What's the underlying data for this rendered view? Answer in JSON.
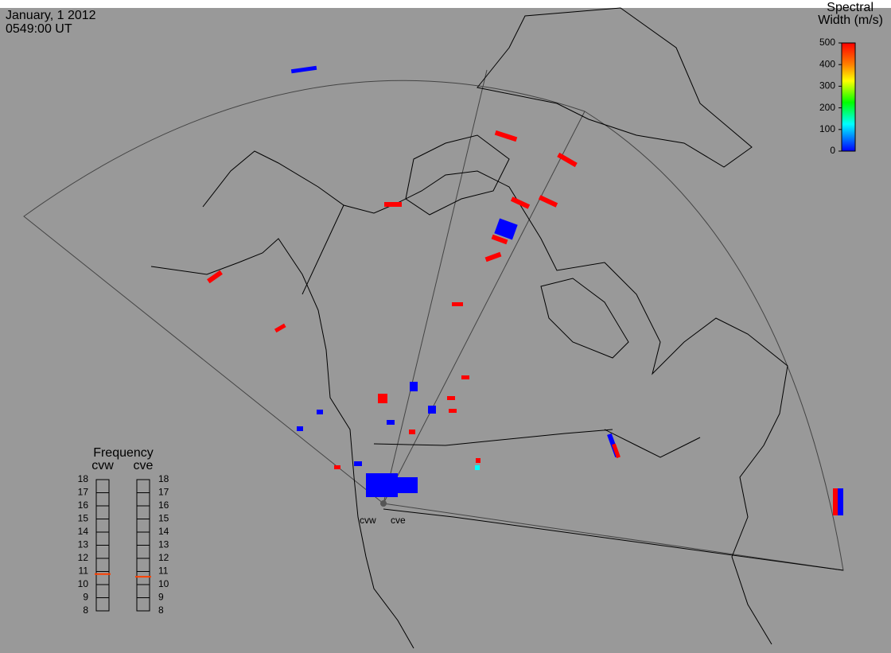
{
  "header": {
    "date": "January, 1 2012",
    "time": "0549:00 UT"
  },
  "colorbar": {
    "title_line1": "Spectral",
    "title_line2": "Width (m/s)",
    "range": [
      0,
      500
    ],
    "ticks": [
      0,
      100,
      200,
      300,
      400,
      500
    ]
  },
  "frequency": {
    "title": "Frequency",
    "range": [
      8,
      18
    ],
    "ticks": [
      8,
      9,
      10,
      11,
      12,
      13,
      14,
      15,
      16,
      17,
      18
    ],
    "radars": [
      {
        "name": "cvw",
        "value": 10.8
      },
      {
        "name": "cve",
        "value": 10.6
      }
    ]
  },
  "stations": [
    "cvw",
    "cve"
  ]
}
